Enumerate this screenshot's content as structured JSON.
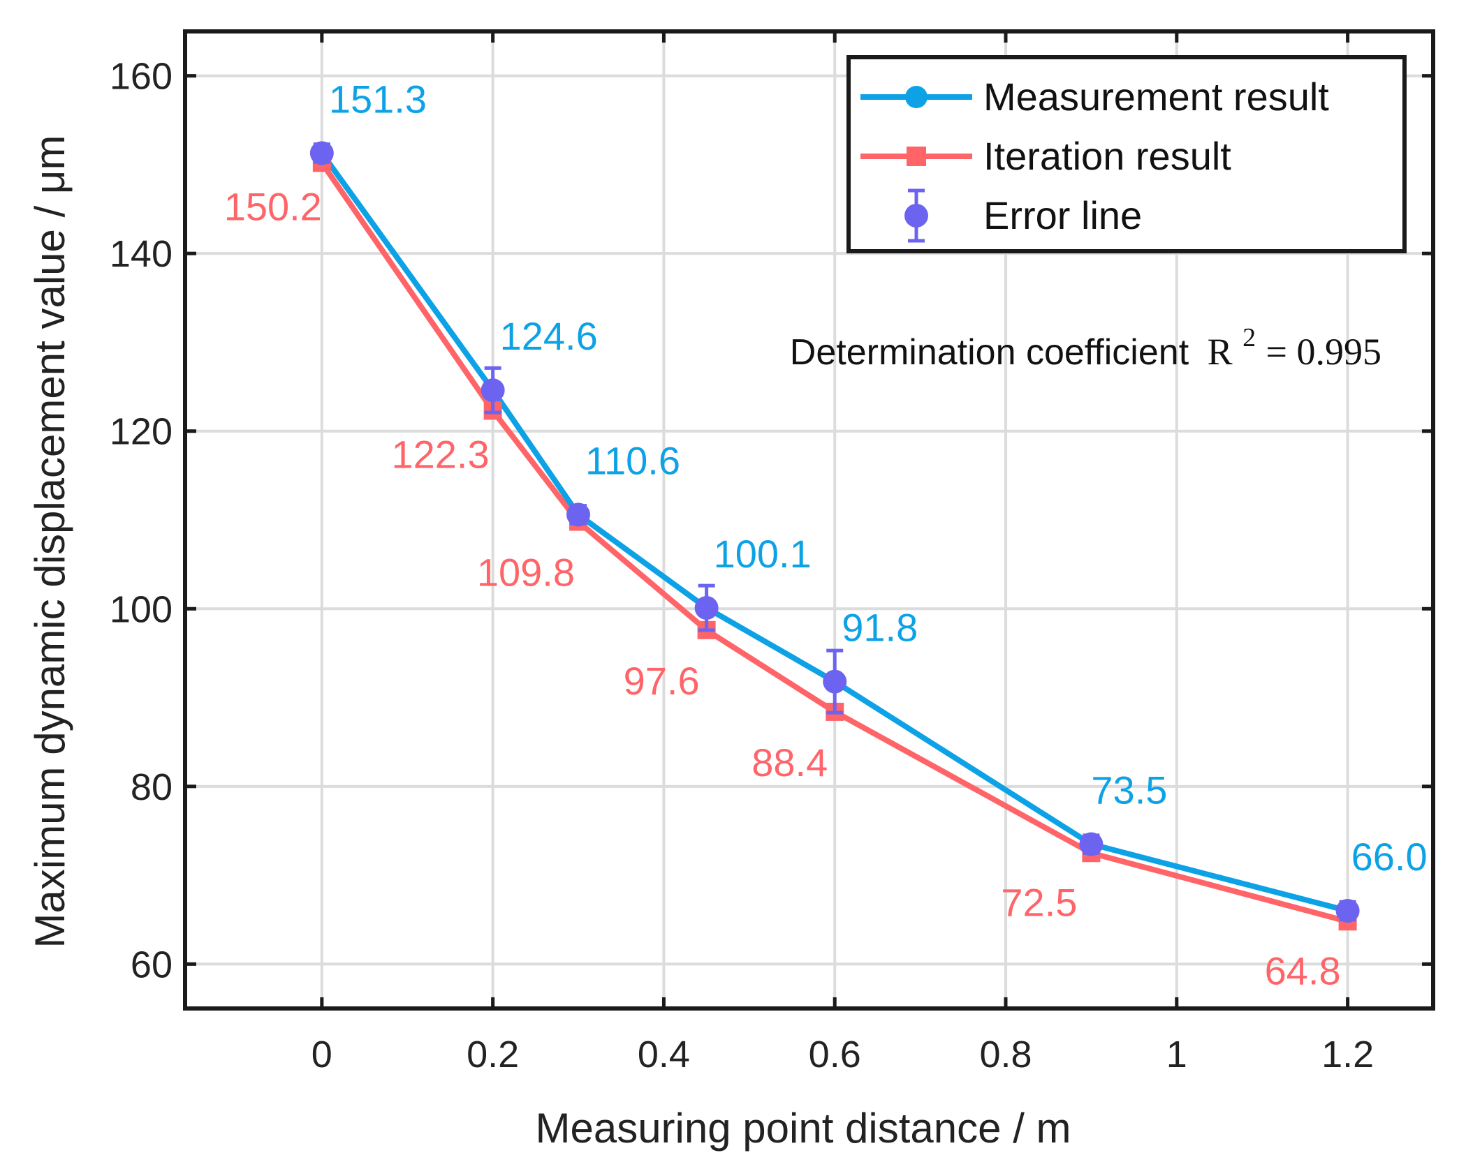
{
  "chart_data": {
    "type": "line",
    "xlabel": "Measuring point distance / m",
    "ylabel": "Maximum dynamic displacement value / μm",
    "xlim": [
      -0.16,
      1.3
    ],
    "ylim": [
      55,
      165
    ],
    "xticks": [
      0,
      0.2,
      0.4,
      0.6,
      0.8,
      1,
      1.2
    ],
    "xtick_labels": [
      "0",
      "0.2",
      "0.4",
      "0.6",
      "0.8",
      "1",
      "1.2"
    ],
    "yticks": [
      60,
      80,
      100,
      120,
      140,
      160
    ],
    "ytick_labels": [
      "60",
      "80",
      "100",
      "120",
      "140",
      "160"
    ],
    "grid": true,
    "legend_position": "top-right",
    "x": [
      0,
      0.2,
      0.3,
      0.45,
      0.6,
      0.9,
      1.2
    ],
    "series": [
      {
        "name": "Measurement result",
        "values": [
          151.3,
          124.6,
          110.6,
          100.1,
          91.8,
          73.5,
          66.0
        ],
        "labels": [
          "151.3",
          "124.6",
          "110.6",
          "100.1",
          "91.8",
          "73.5",
          "66.0"
        ],
        "color": "#0da2e6",
        "marker": "circle"
      },
      {
        "name": "Iteration result",
        "values": [
          150.2,
          122.3,
          109.8,
          97.6,
          88.4,
          72.5,
          64.8
        ],
        "labels": [
          "150.2",
          "122.3",
          "109.8",
          "97.6",
          "88.4",
          "72.5",
          "64.8"
        ],
        "color": "#ff6468",
        "marker": "square"
      },
      {
        "name": "Error line",
        "type": "errorbar",
        "values": [
          151.3,
          124.6,
          110.6,
          100.1,
          91.8,
          73.5,
          66.0
        ],
        "error": [
          1.0,
          2.5,
          1.0,
          2.5,
          3.5,
          1.0,
          1.0
        ],
        "color": "#6c63f0",
        "marker": "circle"
      }
    ],
    "annotation": {
      "text": "Determination coefficient",
      "formula_base": "R",
      "formula_exp": "2",
      "formula_rest": " = 0.995"
    }
  }
}
